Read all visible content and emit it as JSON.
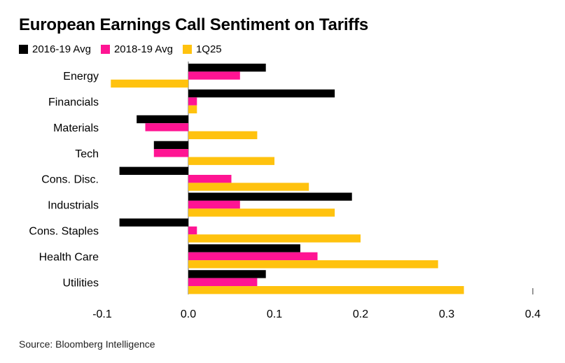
{
  "chart_data": {
    "type": "bar",
    "orientation": "horizontal",
    "title": "European Earnings Call Sentiment on Tariffs",
    "categories": [
      "Energy",
      "Financials",
      "Materials",
      "Tech",
      "Cons. Disc.",
      "Industrials",
      "Cons. Staples",
      "Health Care",
      "Utilities"
    ],
    "series": [
      {
        "name": "2016-19 Avg",
        "color": "#000000",
        "values": [
          0.09,
          0.17,
          -0.06,
          -0.04,
          -0.08,
          0.19,
          -0.08,
          0.13,
          0.09
        ]
      },
      {
        "name": "2018-19 Avg",
        "color": "#ff1493",
        "values": [
          0.06,
          0.01,
          -0.05,
          -0.04,
          0.05,
          0.06,
          0.01,
          0.15,
          0.08
        ]
      },
      {
        "name": "1Q25",
        "color": "#ffc20e",
        "values": [
          -0.09,
          0.01,
          0.08,
          0.1,
          0.14,
          0.17,
          0.2,
          0.29,
          0.32
        ]
      }
    ],
    "xlim": [
      -0.1,
      0.4
    ],
    "xticks": [
      "-0.1",
      "0.0",
      "0.1",
      "0.2",
      "0.3",
      "0.4"
    ],
    "xticks_values": [
      -0.1,
      0.0,
      0.1,
      0.2,
      0.3,
      0.4
    ],
    "legend_position": "top-left",
    "grid": false
  },
  "source": "Source: Bloomberg Intelligence"
}
